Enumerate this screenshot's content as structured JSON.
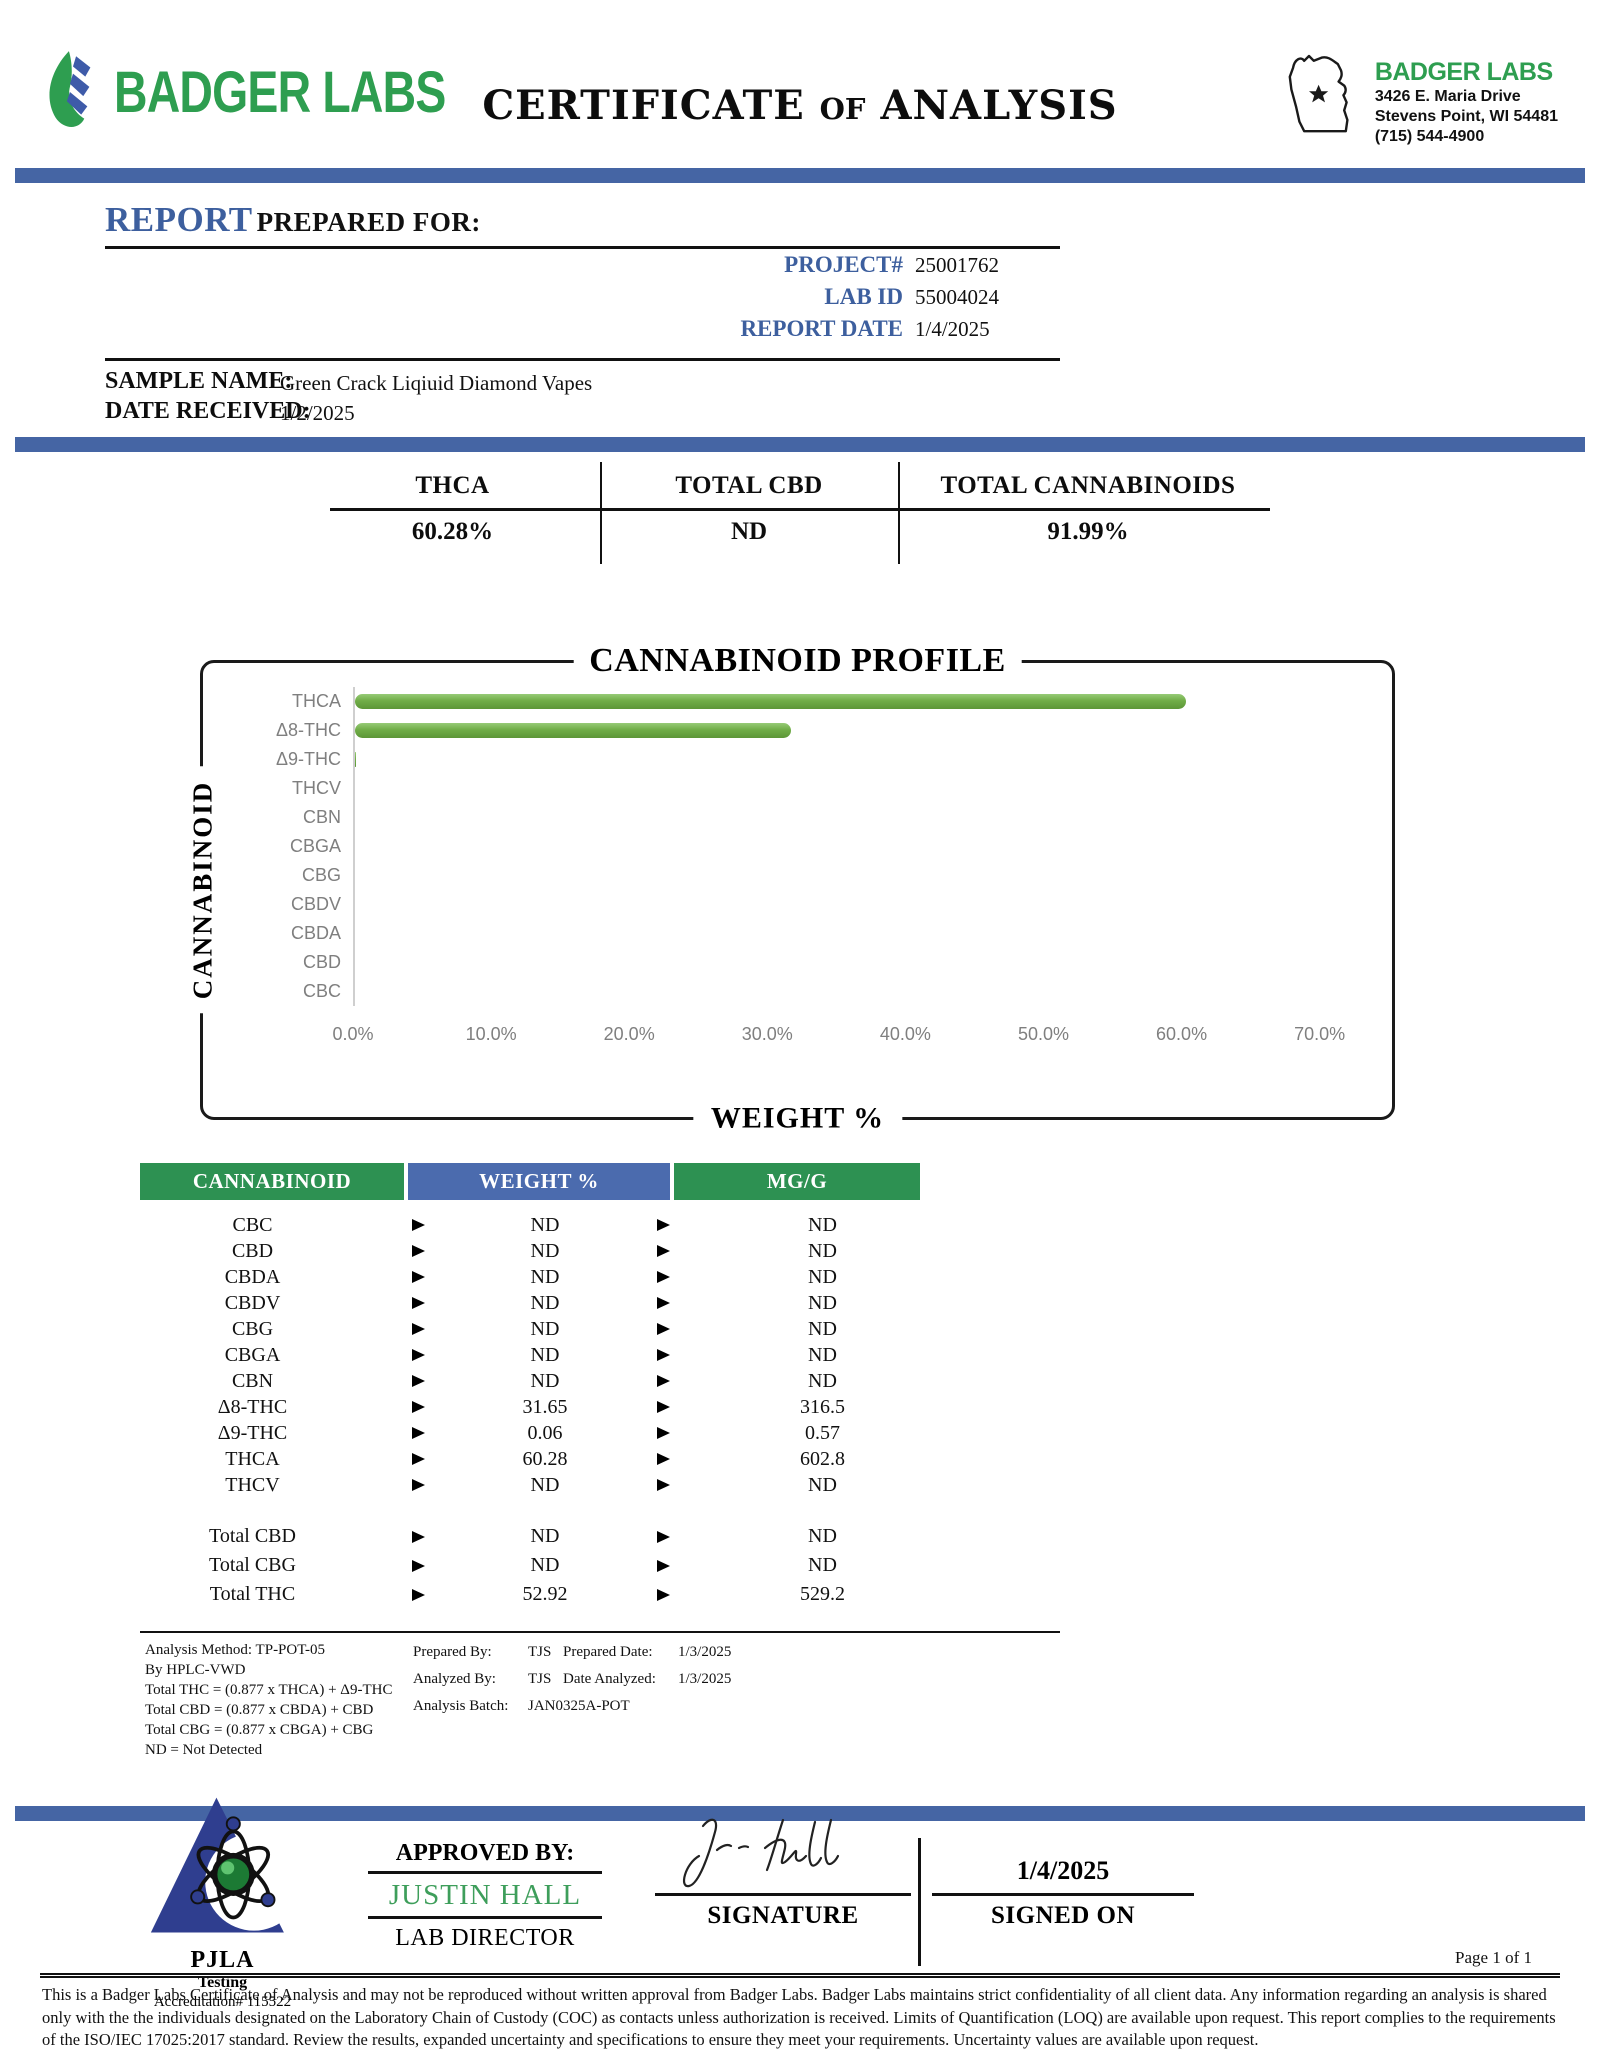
{
  "colors": {
    "brand_green": "#2E9E50",
    "accent_blue": "#4565A4",
    "label_blue": "#3D5F9E",
    "table_green": "#2D9152",
    "table_blue": "#4B6BAE",
    "bar_green": "#70AD47",
    "pjla_navy": "#2F3E8F"
  },
  "header": {
    "logo_text": "BADGER LABS",
    "title_left": "CERTIFICATE",
    "title_of": "OF",
    "title_right": "ANALYSIS",
    "lab_name": "BADGER LABS",
    "address_line1": "3426 E. Maria Drive",
    "address_line2": "Stevens Point, WI 54481",
    "phone": "(715) 544-4900"
  },
  "report": {
    "heading_word1": "REPORT",
    "heading_word2": "PREPARED FOR:",
    "fields": [
      {
        "label": "PROJECT#",
        "value": "25001762"
      },
      {
        "label": "LAB ID",
        "value": "55004024"
      },
      {
        "label": "REPORT DATE",
        "value": "1/4/2025"
      }
    ]
  },
  "sample": {
    "name_label": "SAMPLE NAME:",
    "name": "Green Crack Liqiuid Diamond Vapes",
    "received_label": "DATE RECEIVED:",
    "received": "1/2/2025"
  },
  "summary": {
    "columns": [
      {
        "label": "THCA",
        "value": "60.28%"
      },
      {
        "label": "TOTAL CBD",
        "value": "ND"
      },
      {
        "label": "TOTAL CANNABINOIDS",
        "value": "91.99%"
      }
    ]
  },
  "chart_data": {
    "type": "bar",
    "orientation": "horizontal",
    "title": "CANNABINOID PROFILE",
    "xlabel": "WEIGHT %",
    "ylabel": "CANNABINOID",
    "categories": [
      "THCA",
      "Δ8-THC",
      "Δ9-THC",
      "THCV",
      "CBN",
      "CBGA",
      "CBG",
      "CBDV",
      "CBDA",
      "CBD",
      "CBC"
    ],
    "values": [
      60.28,
      31.65,
      0.06,
      0,
      0,
      0,
      0,
      0,
      0,
      0,
      0
    ],
    "xlim": [
      0,
      73.5
    ],
    "xticks": [
      0,
      10,
      20,
      30,
      40,
      50,
      60,
      70
    ],
    "xtick_labels": [
      "0.0%",
      "10.0%",
      "20.0%",
      "30.0%",
      "40.0%",
      "50.0%",
      "60.0%",
      "70.0%"
    ],
    "grid": false,
    "legend": false,
    "bar_color": "#70AD47"
  },
  "table": {
    "headers": [
      "CANNABINOID",
      "WEIGHT %",
      "MG/G"
    ],
    "rows": [
      [
        "CBC",
        "ND",
        "ND"
      ],
      [
        "CBD",
        "ND",
        "ND"
      ],
      [
        "CBDA",
        "ND",
        "ND"
      ],
      [
        "CBDV",
        "ND",
        "ND"
      ],
      [
        "CBG",
        "ND",
        "ND"
      ],
      [
        "CBGA",
        "ND",
        "ND"
      ],
      [
        "CBN",
        "ND",
        "ND"
      ],
      [
        "Δ8-THC",
        "31.65",
        "316.5"
      ],
      [
        "Δ9-THC",
        "0.06",
        "0.57"
      ],
      [
        "THCA",
        "60.28",
        "602.8"
      ],
      [
        "THCV",
        "ND",
        "ND"
      ]
    ],
    "totals": [
      [
        "Total CBD",
        "ND",
        "ND"
      ],
      [
        "Total CBG",
        "ND",
        "ND"
      ],
      [
        "Total THC",
        "52.92",
        "529.2"
      ]
    ]
  },
  "notes": {
    "method_lines": [
      "Analysis Method: TP-POT-05",
      "By HPLC-VWD",
      "Total THC = (0.877 x  THCA) + Δ9-THC",
      "Total CBD = (0.877 x  CBDA) + CBD",
      "Total CBG = (0.877 x  CBGA) + CBG",
      "ND = Not Detected"
    ],
    "prepared_by_label": "Prepared By:",
    "prepared_by": "TJS",
    "analyzed_by_label": "Analyzed By:",
    "analyzed_by": "TJS",
    "batch_label": "Analysis Batch:",
    "batch": "JAN0325A-POT",
    "prepared_date_label": "Prepared Date:",
    "prepared_date": "1/3/2025",
    "date_analyzed_label": "Date Analyzed:",
    "date_analyzed": "1/3/2025"
  },
  "accreditation": {
    "org": "PJLA",
    "sub": "Testing",
    "number": "Accreditation# 115522"
  },
  "approval": {
    "approved_by_label": "APPROVED BY:",
    "name": "JUSTIN HALL",
    "role": "LAB DIRECTOR",
    "signature_label": "SIGNATURE",
    "signed_on_label": "SIGNED ON",
    "signed_date": "1/4/2025"
  },
  "footer": {
    "page": "Page 1 of 1",
    "disclaimer": "This is a Badger Labs Certificate of Analysis and may not be reproduced without written approval from Badger Labs. Badger Labs maintains strict confidentiality of all client data. Any information regarding an analysis is shared only with the the individuals designated on the Laboratory Chain of Custody (COC) as contacts unless authorization is received. Limits of Quantification (LOQ) are available upon request. This report complies to the requirements of the ISO/IEC 17025:2017 standard. Review the results, expanded uncertainty and specifications to ensure they meet your requirements. Uncertainty values are available upon request."
  }
}
